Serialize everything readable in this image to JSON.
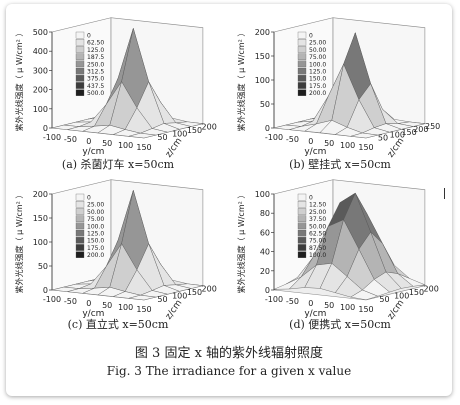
{
  "figure": {
    "title_cn": "图 3    固定 x 轴的紫外线辐射照度",
    "title_en": "Fig. 3    The irradiance for a given x value"
  },
  "chart_data": [
    {
      "type": "surface3d",
      "caption": "(a) 杀菌灯车 x=50cm",
      "zlabel": "紫外光线强度（ μ W/cm² ）",
      "ylabel": "y/cm",
      "xlabel": "z/cm",
      "zticks": [
        "0",
        "100",
        "200",
        "300",
        "400",
        "500"
      ],
      "yticks": [
        "-100",
        "-50",
        "0",
        "50",
        "100",
        "150"
      ],
      "xticks": [
        "50",
        "100",
        "150",
        "200"
      ],
      "zlim": [
        0,
        500
      ],
      "legend": [
        "0",
        "62.50",
        "125.0",
        "187.5",
        "250.0",
        "312.5",
        "375.0",
        "437.5",
        "500.0"
      ],
      "peak": 500
    },
    {
      "type": "surface3d",
      "caption": "(b) 壁挂式 x=50cm",
      "zlabel": "紫外光线强度（ μ W/cm² ）",
      "ylabel": "y/cm",
      "xlabel": "z/cm",
      "zticks": [
        "0",
        "50",
        "100",
        "150",
        "200"
      ],
      "yticks": [
        "-100",
        "-50",
        "0",
        "50",
        "100",
        "150"
      ],
      "xticks": [
        "50",
        "100",
        "150",
        "200",
        "250"
      ],
      "zlim": [
        0,
        200
      ],
      "legend": [
        "0",
        "25.00",
        "50.00",
        "75.00",
        "100.0",
        "125.0",
        "150.0",
        "175.0",
        "200.0"
      ],
      "peak": 200
    },
    {
      "type": "surface3d",
      "caption": "(c) 直立式 x=50cm",
      "zlabel": "紫外光线强度（ μ W/cm² ）",
      "ylabel": "y/cm",
      "xlabel": "z/cm",
      "zticks": [
        "0",
        "50",
        "100",
        "150",
        "200"
      ],
      "yticks": [
        "-100",
        "-50",
        "0",
        "50",
        "100",
        "150"
      ],
      "xticks": [
        "50",
        "100",
        "150",
        "200"
      ],
      "zlim": [
        0,
        200
      ],
      "legend": [
        "0",
        "25.00",
        "50.00",
        "75.00",
        "100.0",
        "125.0",
        "150.0",
        "175.0",
        "200.0"
      ],
      "peak": 200
    },
    {
      "type": "surface3d",
      "caption": "(d) 便携式 x=50cm",
      "zlabel": "紫外光线强度（ μ W/cm² ）",
      "ylabel": "y/cm",
      "xlabel": "z/cm",
      "zticks": [
        "0",
        "20",
        "40",
        "60",
        "80",
        "100"
      ],
      "yticks": [
        "-100",
        "-50",
        "0",
        "50",
        "100",
        "150"
      ],
      "xticks": [
        "50",
        "100",
        "150",
        "200"
      ],
      "zlim": [
        0,
        100
      ],
      "legend": [
        "0",
        "12.50",
        "25.00",
        "37.50",
        "50.00",
        "62.50",
        "75.00",
        "87.50",
        "100.0"
      ],
      "peak": 100
    }
  ]
}
